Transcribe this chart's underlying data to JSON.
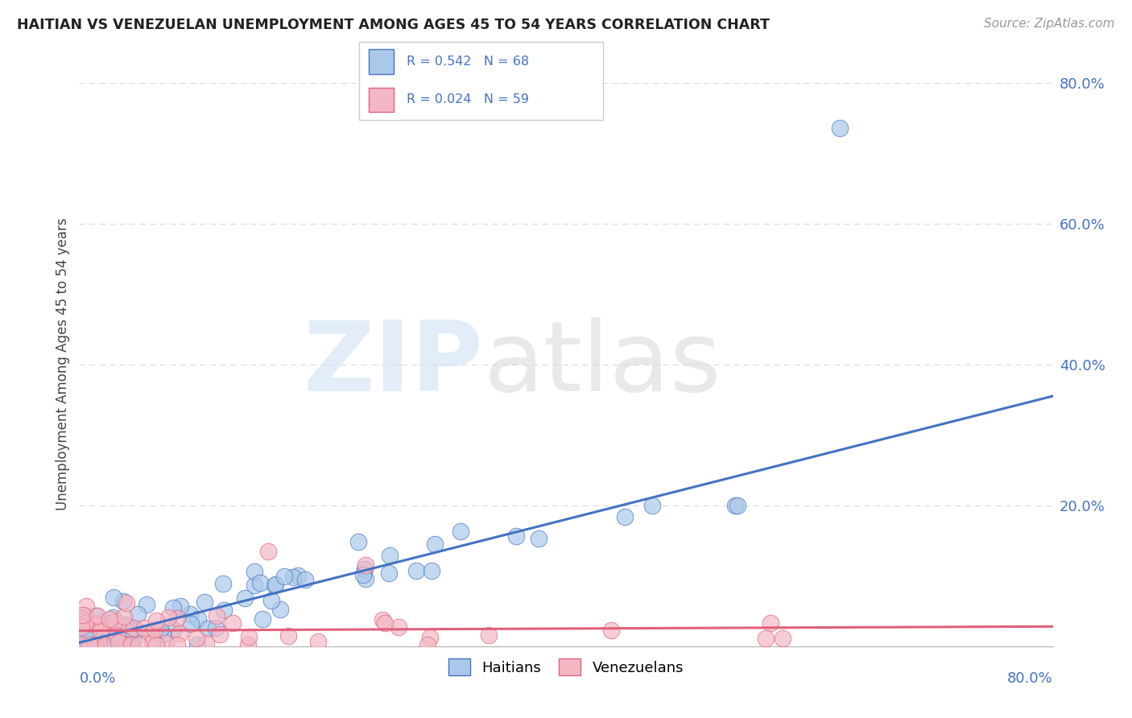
{
  "title": "HAITIAN VS VENEZUELAN UNEMPLOYMENT AMONG AGES 45 TO 54 YEARS CORRELATION CHART",
  "source": "Source: ZipAtlas.com",
  "ylabel": "Unemployment Among Ages 45 to 54 years",
  "xlim": [
    0.0,
    0.8
  ],
  "ylim": [
    0.0,
    0.8
  ],
  "ytick_vals": [
    0.0,
    0.2,
    0.4,
    0.6,
    0.8
  ],
  "ytick_labels": [
    "",
    "20.0%",
    "40.0%",
    "60.0%",
    "80.0%"
  ],
  "legend_r1": "R = 0.542",
  "legend_n1": "N = 68",
  "legend_r2": "R = 0.024",
  "legend_n2": "N = 59",
  "haitian_color": "#aac9ea",
  "venezuelan_color": "#f4b8c4",
  "line_haitian": "#4472c4",
  "line_venezuelan": "#e0607a",
  "grid_color": "#dddddd",
  "tick_color": "#4472c4"
}
